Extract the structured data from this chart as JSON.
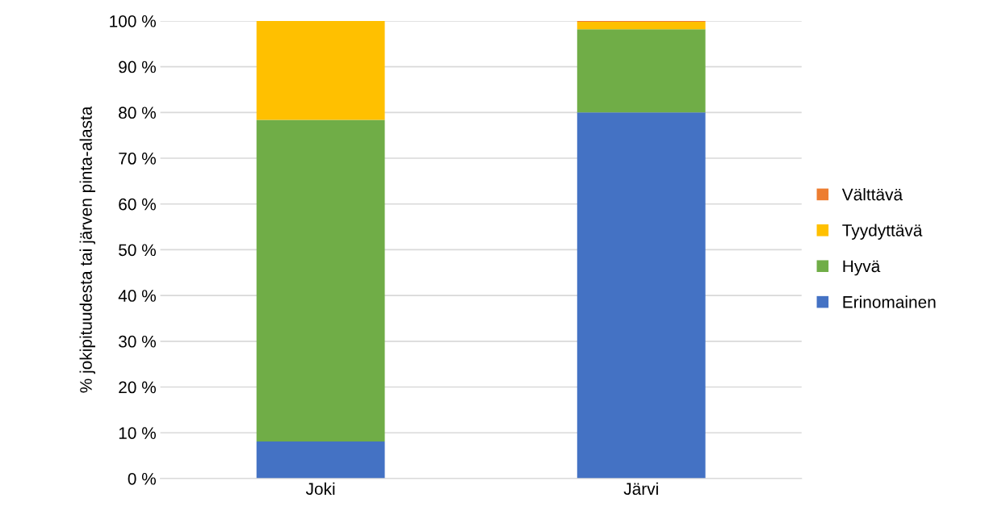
{
  "chart_data": {
    "type": "bar",
    "stacked": true,
    "ylabel": "% jokipituudesta tai järven pinta-alasta",
    "categories": [
      "Joki",
      "Järvi"
    ],
    "series": [
      {
        "name": "Erinomainen",
        "color": "#4472c4",
        "values": [
          8.1,
          80.0
        ]
      },
      {
        "name": "Hyvä",
        "color": "#70ad47",
        "values": [
          70.3,
          18.2
        ]
      },
      {
        "name": "Tyydyttävä",
        "color": "#ffc000",
        "values": [
          21.6,
          1.6
        ]
      },
      {
        "name": "Välttävä",
        "color": "#ed7d31",
        "values": [
          0,
          0.2
        ]
      }
    ],
    "ylim": [
      0,
      100
    ],
    "yticks": [
      {
        "value": 0,
        "label": "0 %"
      },
      {
        "value": 10,
        "label": "10 %"
      },
      {
        "value": 20,
        "label": "20 %"
      },
      {
        "value": 30,
        "label": "30 %"
      },
      {
        "value": 40,
        "label": "40 %"
      },
      {
        "value": 50,
        "label": "50 %"
      },
      {
        "value": 60,
        "label": "60 %"
      },
      {
        "value": 70,
        "label": "70 %"
      },
      {
        "value": 80,
        "label": "80 %"
      },
      {
        "value": 90,
        "label": "90 %"
      },
      {
        "value": 100,
        "label": "100 %"
      }
    ],
    "grid": "y",
    "legend": "right"
  }
}
